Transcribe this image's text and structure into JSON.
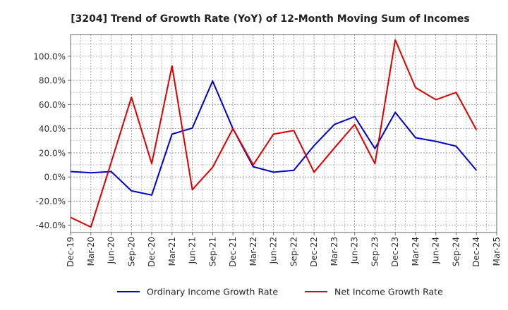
{
  "chart_data": {
    "type": "line",
    "title": "[3204]  Trend of Growth Rate (YoY) of 12-Month Moving Sum of Incomes",
    "xlabel": "",
    "ylabel": "",
    "x": [
      "Dec-19",
      "Mar-20",
      "Jun-20",
      "Sep-20",
      "Dec-20",
      "Mar-21",
      "Jun-21",
      "Sep-21",
      "Dec-21",
      "Mar-22",
      "Jun-22",
      "Sep-22",
      "Dec-22",
      "Mar-23",
      "Jun-23",
      "Sep-23",
      "Dec-23",
      "Mar-24",
      "Jun-24",
      "Sep-24",
      "Dec-24"
    ],
    "x_tick_labels": [
      "Dec-19",
      "Mar-20",
      "Jun-20",
      "Sep-20",
      "Dec-20",
      "Mar-21",
      "Jun-21",
      "Sep-21",
      "Dec-21",
      "Mar-22",
      "Jun-22",
      "Sep-22",
      "Dec-22",
      "Mar-23",
      "Jun-23",
      "Sep-23",
      "Dec-23",
      "Mar-24",
      "Jun-24",
      "Sep-24",
      "Dec-24",
      "Mar-25"
    ],
    "y_ticks": [
      -40,
      -20,
      0,
      20,
      40,
      60,
      80,
      100
    ],
    "y_tick_labels": [
      "-40.0%",
      "-20.0%",
      "0.0%",
      "20.0%",
      "40.0%",
      "60.0%",
      "80.0%",
      "100.0%"
    ],
    "ylim": [
      -46,
      118
    ],
    "grid": true,
    "legend_position": "bottom",
    "series": [
      {
        "name": "Ordinary Income Growth Rate",
        "color": "#0000cc",
        "x": [
          0,
          1,
          2,
          3,
          4,
          5,
          6,
          7,
          8,
          9,
          10,
          11,
          12,
          13,
          14,
          15,
          16,
          17,
          18,
          19,
          20
        ],
        "values": [
          4.5,
          3.5,
          4.5,
          -11.5,
          -15,
          35.5,
          40.5,
          79.5,
          40,
          8.5,
          4,
          5.5,
          26,
          43.5,
          50,
          23.5,
          53.5,
          32.5,
          29.5,
          25.5,
          5.5
        ]
      },
      {
        "name": "Net Income Growth Rate",
        "color": "#dd0000",
        "x": [
          0,
          1,
          2,
          3,
          4,
          5,
          6,
          7,
          8,
          9,
          10,
          11,
          12,
          13,
          14,
          15,
          16,
          17,
          18,
          19,
          20
        ],
        "values": [
          -33.5,
          -41.5,
          12,
          66,
          11,
          92,
          -10.5,
          8,
          40,
          10,
          35.5,
          38.5,
          4,
          24,
          43.5,
          11,
          113.5,
          74,
          64,
          70,
          39
        ]
      }
    ]
  }
}
